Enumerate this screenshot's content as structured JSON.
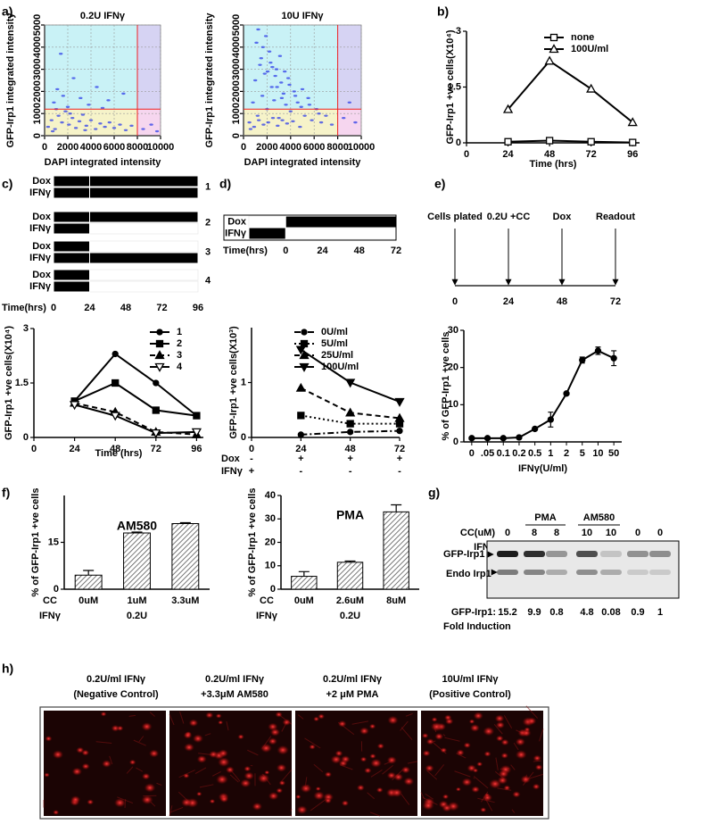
{
  "panel_labels": [
    "a)",
    "b)",
    "c)",
    "d)",
    "e)",
    "f)",
    "g)",
    "h)"
  ],
  "chart_data": [
    {
      "type": "scatter",
      "title": "0.2U IFNγ",
      "xlabel": "DAPI integrated intensity",
      "ylabel": "GFP-Irp1 integrated intensity",
      "xlim": [
        0,
        10000
      ],
      "ylim": [
        0,
        5000
      ],
      "xticks": [
        0,
        2000,
        4000,
        6000,
        8000,
        10000
      ],
      "yticks": [
        0,
        1000,
        2000,
        3000,
        4000,
        5000
      ],
      "grid": true,
      "color": "#2f3fe8",
      "divider_x": 8000,
      "divider_y": 1200,
      "x": [
        300,
        600,
        900,
        1200,
        1500,
        1800,
        2100,
        2400,
        2700,
        3000,
        3300,
        3600,
        4000,
        4400,
        4800,
        5200,
        5600,
        6000,
        6500,
        7000,
        7500,
        800,
        1100,
        1600,
        2000,
        2500,
        3100,
        3800,
        4500,
        5500,
        6800,
        8500,
        9200,
        9700,
        1400,
        2200,
        1000,
        5000,
        3500,
        700
      ],
      "y": [
        400,
        700,
        300,
        900,
        600,
        1100,
        500,
        800,
        350,
        650,
        950,
        450,
        700,
        300,
        550,
        400,
        600,
        350,
        500,
        250,
        450,
        1500,
        2100,
        1800,
        1300,
        2600,
        1700,
        1400,
        2200,
        1600,
        1900,
        300,
        500,
        200,
        3700,
        1000,
        1200,
        1250,
        250,
        200
      ]
    },
    {
      "type": "scatter",
      "title": "10U IFNγ",
      "xlabel": "DAPI integrated intensity",
      "ylabel": "GFP-Irp1 integrated intensity",
      "xlim": [
        0,
        10000
      ],
      "ylim": [
        0,
        5000
      ],
      "xticks": [
        0,
        2000,
        4000,
        6000,
        8000,
        10000
      ],
      "yticks": [
        0,
        1000,
        2000,
        3000,
        4000,
        5000
      ],
      "grid": true,
      "color": "#2f3fe8",
      "divider_x": 8000,
      "divider_y": 1200,
      "x": [
        500,
        800,
        1000,
        1200,
        1400,
        1600,
        1800,
        2000,
        2200,
        2400,
        2600,
        2800,
        3000,
        3200,
        3400,
        3600,
        3800,
        4000,
        4300,
        4600,
        4900,
        5200,
        5500,
        5800,
        6200,
        6600,
        7000,
        7500,
        1100,
        1500,
        1900,
        2300,
        2700,
        3100,
        3500,
        3900,
        4400,
        5000,
        5600,
        6400,
        900,
        1300,
        1700,
        2100,
        2500,
        2900,
        3300,
        3700,
        4200,
        4800,
        8500,
        9000,
        9500,
        1250,
        1650,
        2050,
        2450,
        2850,
        3250,
        600
      ],
      "y": [
        600,
        1500,
        2500,
        900,
        3200,
        1800,
        2800,
        1200,
        3800,
        2200,
        1600,
        3000,
        800,
        2400,
        1900,
        1400,
        2600,
        1100,
        2000,
        1500,
        1300,
        900,
        1700,
        700,
        1200,
        600,
        900,
        500,
        4200,
        3500,
        4500,
        3300,
        2700,
        3600,
        2900,
        2300,
        1800,
        2100,
        1400,
        1000,
        400,
        700,
        500,
        600,
        800,
        450,
        700,
        550,
        650,
        400,
        800,
        1500,
        600,
        4800,
        4000,
        2900,
        3100,
        2200,
        1700,
        300
      ]
    },
    {
      "type": "line",
      "xlabel": "Time (hrs)",
      "ylabel": "GFP-Irp1 +ve cells(X10⁴)",
      "x": [
        24,
        48,
        72,
        96
      ],
      "xlim": [
        0,
        100
      ],
      "ylim": [
        0,
        3
      ],
      "xticks": [
        0,
        24,
        48,
        72,
        96
      ],
      "yticks": [
        0,
        1.5,
        3
      ],
      "legend": "upper right",
      "series": [
        {
          "name": "none",
          "color": "#000000",
          "marker": "square-open",
          "dash": "solid",
          "values": [
            0.03,
            0.06,
            0.03,
            0.01
          ]
        },
        {
          "name": "100U/ml",
          "color": "#000000",
          "marker": "triangle-open",
          "dash": "solid",
          "values": [
            0.9,
            2.2,
            1.45,
            0.55
          ]
        }
      ]
    },
    {
      "type": "gantt",
      "xlabel": "Time(hrs)",
      "xlim": [
        0,
        96
      ],
      "xticks": [
        0,
        24,
        48,
        72,
        96
      ],
      "groups": [
        {
          "label": "1",
          "bars": [
            {
              "name": "Dox",
              "segments": [
                [
                  0,
                  24
                ],
                [
                  24,
                  96
                ]
              ]
            },
            {
              "name": "IFNγ",
              "segments": [
                [
                  0,
                  24
                ],
                [
                  24,
                  96
                ]
              ]
            }
          ]
        },
        {
          "label": "2",
          "bars": [
            {
              "name": "Dox",
              "segments": [
                [
                  0,
                  24
                ],
                [
                  24,
                  96
                ]
              ]
            },
            {
              "name": "IFNγ",
              "segments": [
                [
                  0,
                  24
                ]
              ]
            }
          ]
        },
        {
          "label": "3",
          "bars": [
            {
              "name": "Dox",
              "segments": [
                [
                  0,
                  24
                ]
              ]
            },
            {
              "name": "IFNγ",
              "segments": [
                [
                  0,
                  24
                ],
                [
                  24,
                  96
                ]
              ]
            }
          ]
        },
        {
          "label": "4",
          "bars": [
            {
              "name": "Dox",
              "segments": [
                [
                  0,
                  24
                ]
              ]
            },
            {
              "name": "IFNγ",
              "segments": [
                [
                  0,
                  24
                ]
              ]
            }
          ]
        }
      ]
    },
    {
      "type": "line",
      "xlabel": "Time (hrs)",
      "ylabel": "GFP-Irp1 +ve cells(X10⁴)",
      "x": [
        24,
        48,
        72,
        96
      ],
      "xlim": [
        0,
        100
      ],
      "ylim": [
        0,
        3
      ],
      "xticks": [
        0,
        24,
        48,
        72,
        96
      ],
      "yticks": [
        0,
        1.5,
        3
      ],
      "legend": "upper right",
      "series": [
        {
          "name": "1",
          "color": "#000000",
          "marker": "circle",
          "dash": "solid",
          "values": [
            1.0,
            2.3,
            1.5,
            0.6
          ]
        },
        {
          "name": "2",
          "color": "#000000",
          "marker": "square",
          "dash": "solid",
          "values": [
            1.0,
            1.5,
            0.75,
            0.6
          ]
        },
        {
          "name": "3",
          "color": "#000000",
          "marker": "triangle",
          "dash": "dashed",
          "values": [
            0.95,
            0.7,
            0.15,
            0.08
          ]
        },
        {
          "name": "4",
          "color": "#000000",
          "marker": "triangle-down-open",
          "dash": "solid",
          "values": [
            0.9,
            0.6,
            0.12,
            0.15
          ]
        }
      ]
    },
    {
      "type": "gantt",
      "xlabel": "Time(hrs)",
      "xlim": [
        -24,
        72
      ],
      "xticks": [
        0,
        24,
        48,
        72
      ],
      "rows": [
        {
          "name": "Dox",
          "segments": [
            [
              0,
              72
            ]
          ]
        },
        {
          "name": "IFNγ",
          "segments": [
            [
              -24,
              0
            ]
          ]
        }
      ]
    },
    {
      "type": "line",
      "ylabel": "GFP-Irp1 +ve cells(X10³)",
      "x": [
        24,
        48,
        72
      ],
      "xlim": [
        0,
        72
      ],
      "ylim": [
        0,
        2
      ],
      "xticks": [
        0,
        24,
        48,
        72
      ],
      "yticks": [
        0,
        1
      ],
      "legend": "upper right",
      "series": [
        {
          "name": "0U/ml",
          "color": "#000000",
          "marker": "circle",
          "dash": "dashdot",
          "values": [
            0.05,
            0.1,
            0.12
          ]
        },
        {
          "name": "5U/ml",
          "color": "#000000",
          "marker": "square",
          "dash": "dotted",
          "values": [
            0.4,
            0.25,
            0.25
          ]
        },
        {
          "name": "25U/ml",
          "color": "#000000",
          "marker": "triangle",
          "dash": "dashed",
          "values": [
            0.9,
            0.45,
            0.35
          ]
        },
        {
          "name": "100U/ml",
          "color": "#000000",
          "marker": "triangle-down",
          "dash": "solid",
          "values": [
            1.6,
            1.0,
            0.65
          ]
        }
      ],
      "conditions": [
        {
          "label": "Dox",
          "marks": [
            "-",
            "+",
            "+",
            "+"
          ]
        },
        {
          "label": "IFNγ",
          "marks": [
            "+",
            "-",
            "-",
            "-"
          ]
        }
      ]
    },
    {
      "type": "timeline",
      "xlim": [
        0,
        72
      ],
      "xticks": [
        0,
        24,
        48,
        72
      ],
      "events": [
        {
          "label": "Cells plated",
          "time": 0
        },
        {
          "label": "0.2U +CC",
          "time": 24
        },
        {
          "label": "Dox",
          "time": 48
        },
        {
          "label": "Readout",
          "time": 72
        }
      ]
    },
    {
      "type": "line",
      "xlabel": "IFNγ(U/ml)",
      "ylabel": "% of GFP-Irp1 +ve cells",
      "categories": [
        "0",
        ".05",
        "0.1",
        "0.2",
        "0.5",
        "1",
        "2",
        "5",
        "10",
        "50"
      ],
      "ylim": [
        0,
        30
      ],
      "yticks": [
        0,
        10,
        20,
        30
      ],
      "series": [
        {
          "color": "#000000",
          "marker": "circle",
          "dash": "solid",
          "values": [
            1,
            1,
            1,
            1.2,
            3.5,
            6,
            13,
            22,
            24.5,
            22.5
          ],
          "errors": [
            0,
            0,
            0,
            0,
            0,
            2,
            0,
            0.8,
            1,
            2
          ]
        }
      ]
    },
    {
      "type": "bar",
      "title": "AM580",
      "ylabel": "% of GFP-Irp1 +ve cells",
      "ylim": [
        0,
        30
      ],
      "yticks": [
        0,
        15
      ],
      "categories": [
        "0uM",
        "1uM",
        "3.3uM"
      ],
      "values": [
        4.5,
        18,
        21
      ],
      "errors": [
        1.5,
        0.3,
        0.3
      ],
      "row_labels": [
        "CC",
        "IFNγ"
      ],
      "group_label": "0.2U"
    },
    {
      "type": "bar",
      "title": "PMA",
      "ylabel": "% of GFP-Irp1 +ve cells",
      "ylim": [
        0,
        40
      ],
      "yticks": [
        0,
        10,
        20,
        30,
        40
      ],
      "categories": [
        "0uM",
        "2.6uM",
        "8uM"
      ],
      "values": [
        5.5,
        11.5,
        33
      ],
      "errors": [
        2,
        0.5,
        3
      ],
      "row_labels": [
        "CC",
        "IFNγ"
      ],
      "group_label": "0.2U"
    }
  ],
  "blot": {
    "groups": [
      "PMA",
      "AM580"
    ],
    "row_labels": [
      "CC(uM)",
      "IFNγ"
    ],
    "cc": [
      0,
      8,
      8,
      10,
      10,
      0,
      0
    ],
    "ifn": [
      10,
      0.2,
      "-",
      0.2,
      "-",
      0.2,
      "-"
    ],
    "bands": [
      "GFP-Irp1",
      "Endo Irp1"
    ],
    "fold_label": "GFP-Irp1:",
    "fold": [
      15.2,
      9.9,
      0.8,
      4.8,
      0.08,
      0.9,
      1
    ],
    "fold_caption": "Fold Induction"
  },
  "images": [
    {
      "caption": [
        "0.2U/ml IFNγ",
        "(Negative Control)"
      ]
    },
    {
      "caption": [
        "0.2U/ml IFNγ",
        "+3.3μM AM580"
      ]
    },
    {
      "caption": [
        "0.2U/ml IFNγ",
        "+2 μM PMA"
      ]
    },
    {
      "caption": [
        "10U/ml IFNγ",
        "(Positive Control)"
      ]
    }
  ]
}
